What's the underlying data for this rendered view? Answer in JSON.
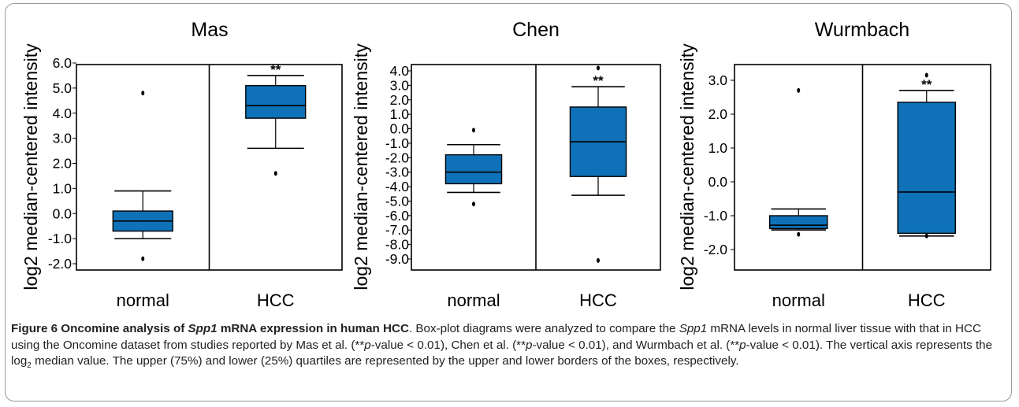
{
  "chart_data": [
    {
      "type": "box",
      "title": "Mas",
      "ylabel": "log2 median-centered intensity",
      "yticks": [
        "6.0",
        "5.0",
        "4.0",
        "3.0",
        "2.0",
        "1.0",
        "0.0",
        "-1.0",
        "-2.0"
      ],
      "ylim": [
        -2.0,
        6.0
      ],
      "categories": [
        "normal",
        "HCC"
      ],
      "boxes": [
        {
          "category": "normal",
          "whisker_low": -1.0,
          "q1": -0.7,
          "median": -0.3,
          "q3": 0.1,
          "whisker_high": 0.9,
          "outliers": [
            4.8,
            -1.8
          ],
          "significance": ""
        },
        {
          "category": "HCC",
          "whisker_low": 2.6,
          "q1": 3.8,
          "median": 4.3,
          "q3": 5.1,
          "whisker_high": 5.5,
          "outliers": [
            1.6
          ],
          "significance": "**"
        }
      ]
    },
    {
      "type": "box",
      "title": "Chen",
      "ylabel": "log2 median-centered intensity",
      "yticks": [
        "4.0",
        "3.0",
        "2.0",
        "1.0",
        "0.0",
        "-1.0",
        "-2.0",
        "-3.0",
        "-4.0",
        "-5.0",
        "-6.0",
        "-7.0",
        "-8.0",
        "-9.0"
      ],
      "ylim": [
        -9.0,
        4.0
      ],
      "categories": [
        "normal",
        "HCC"
      ],
      "boxes": [
        {
          "category": "normal",
          "whisker_low": -4.4,
          "q1": -3.8,
          "median": -3.0,
          "q3": -1.8,
          "whisker_high": -1.1,
          "outliers": [
            -0.1,
            -5.2
          ],
          "significance": ""
        },
        {
          "category": "HCC",
          "whisker_low": -4.6,
          "q1": -3.3,
          "median": -0.9,
          "q3": 1.5,
          "whisker_high": 2.9,
          "outliers": [
            4.2,
            -9.1
          ],
          "significance": "**"
        }
      ]
    },
    {
      "type": "box",
      "title": "Wurmbach",
      "ylabel": "log2 median-centered intensity",
      "yticks": [
        "3.0",
        "2.0",
        "1.0",
        "0.0",
        "-1.0",
        "-2.0"
      ],
      "ylim": [
        -2.0,
        3.0
      ],
      "categories": [
        "normal",
        "HCC"
      ],
      "boxes": [
        {
          "category": "normal",
          "whisker_low": -1.42,
          "q1": -1.38,
          "median": -1.28,
          "q3": -1.0,
          "whisker_high": -0.8,
          "outliers": [
            2.7,
            -1.55
          ],
          "significance": ""
        },
        {
          "category": "HCC",
          "whisker_low": -1.6,
          "q1": -1.52,
          "median": -0.3,
          "q3": 2.35,
          "whisker_high": 2.7,
          "outliers": [
            3.15,
            -1.6
          ],
          "significance": "**"
        }
      ]
    }
  ],
  "caption": {
    "label": "Figure 6 Oncomine analysis of ",
    "label_gene": "Spp1",
    "label_rest": " mRNA expression in human HCC",
    "t1": ". Box-plot diagrams were analyzed to compare the ",
    "gene": "Spp1",
    "t2": " mRNA levels in normal liver tissue with that in HCC using the Oncomine dataset from studies reported by Mas et al. (**",
    "p": "p",
    "t3": "-value < 0.01), Chen et al. (**",
    "t4": "-value < 0.01), and Wurmbach et al. (**",
    "t5": "-value < 0.01). The vertical axis represents the log",
    "sub": "2",
    "t6": " median value. The upper (75%) and lower (25%) quartiles are represented by the upper and lower borders of the boxes, respectively."
  },
  "colors": {
    "box_fill": "#0f71b8",
    "axis": "#000000"
  }
}
